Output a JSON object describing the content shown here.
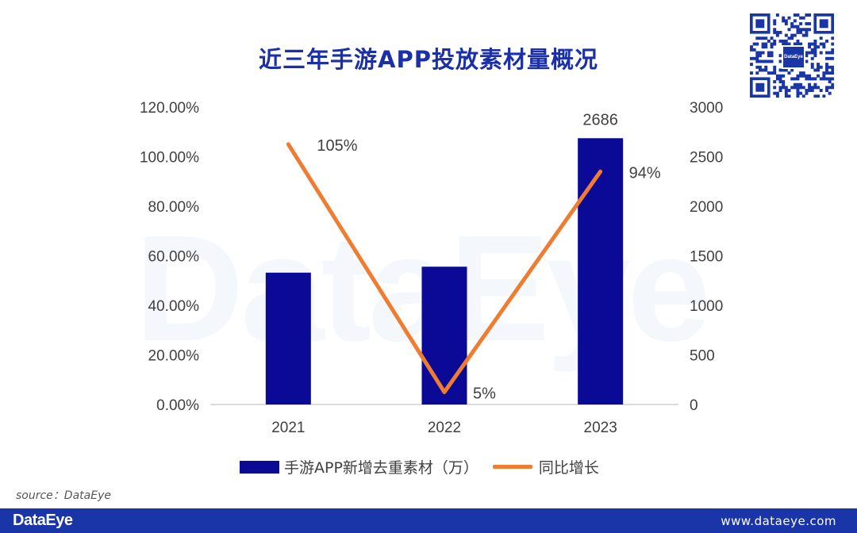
{
  "title": "近三年手游APP投放素材量概况",
  "watermark": "DataEye",
  "chart_data": {
    "type": "bar+line",
    "title": "近三年手游APP投放素材量概况",
    "categories": [
      "2021",
      "2022",
      "2023"
    ],
    "series": [
      {
        "name": "手游APP新增去重素材（万）",
        "type": "bar",
        "axis": "right",
        "values": [
          1330,
          1390,
          2686
        ],
        "labels": [
          "",
          "",
          "2686"
        ]
      },
      {
        "name": "同比增长",
        "type": "line",
        "axis": "left",
        "values": [
          105,
          5,
          94
        ],
        "labels": [
          "105%",
          "5%",
          "94%"
        ]
      }
    ],
    "left_axis": {
      "min": 0,
      "max": 120,
      "ticks": [
        "0.00%",
        "20.00%",
        "40.00%",
        "60.00%",
        "80.00%",
        "100.00%",
        "120.00%"
      ]
    },
    "right_axis": {
      "min": 0,
      "max": 3000,
      "ticks": [
        "0",
        "500",
        "1000",
        "1500",
        "2000",
        "2500",
        "3000"
      ]
    },
    "colors": {
      "bar": "#0a0a96",
      "line": "#ef7d31"
    }
  },
  "legend": {
    "bar_label": "手游APP新增去重素材（万）",
    "line_label": "同比增长"
  },
  "source": "source：DataEye",
  "footer": {
    "brand": "DataEye",
    "url": "www.dataeye.com"
  },
  "qr": {
    "logo_text": "DataEye"
  }
}
